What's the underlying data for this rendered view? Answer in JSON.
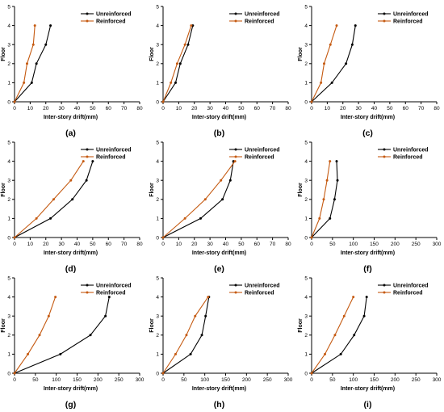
{
  "figure": {
    "panel_count": 9
  },
  "chart_data": [
    {
      "type": "line",
      "label": "(a)",
      "xlabel": "Inter-story drift(mm)",
      "ylabel": "Floor",
      "xlim": [
        0,
        80
      ],
      "ylim": [
        0,
        5
      ],
      "xticks": [
        0,
        10,
        20,
        30,
        40,
        50,
        60,
        70,
        80
      ],
      "yticks": [
        0,
        1,
        2,
        3,
        4,
        5
      ],
      "legend_position": "top-right",
      "series": [
        {
          "name": "Unreinforced",
          "color": "#000000",
          "x": [
            0,
            11,
            14,
            20,
            23
          ],
          "y": [
            0,
            1,
            2,
            3,
            4
          ]
        },
        {
          "name": "Reinforced",
          "color": "#c55a11",
          "x": [
            0,
            6,
            8,
            12,
            13
          ],
          "y": [
            0,
            1,
            2,
            3,
            4
          ]
        }
      ]
    },
    {
      "type": "line",
      "label": "(b)",
      "xlabel": "Inter-story drift(mm)",
      "ylabel": "Floor",
      "xlim": [
        0,
        80
      ],
      "ylim": [
        0,
        5
      ],
      "xticks": [
        0,
        10,
        20,
        30,
        40,
        50,
        60,
        70,
        80
      ],
      "yticks": [
        0,
        1,
        2,
        3,
        4,
        5
      ],
      "legend_position": "top-right",
      "series": [
        {
          "name": "Unreinforced",
          "color": "#000000",
          "x": [
            0,
            8,
            11,
            16,
            19
          ],
          "y": [
            0,
            1,
            2,
            3,
            4
          ]
        },
        {
          "name": "Reinforced",
          "color": "#c55a11",
          "x": [
            0,
            5,
            9,
            14,
            18
          ],
          "y": [
            0,
            1,
            2,
            3,
            4
          ]
        }
      ]
    },
    {
      "type": "line",
      "label": "(c)",
      "xlabel": "Inter-story drift(mm)",
      "ylabel": "Floor",
      "xlim": [
        0,
        80
      ],
      "ylim": [
        0,
        5
      ],
      "xticks": [
        0,
        10,
        20,
        30,
        40,
        50,
        60,
        70,
        80
      ],
      "yticks": [
        0,
        1,
        2,
        3,
        4,
        5
      ],
      "legend_position": "top-right",
      "series": [
        {
          "name": "Unreinforced",
          "color": "#000000",
          "x": [
            0,
            13,
            22,
            26,
            28
          ],
          "y": [
            0,
            1,
            2,
            3,
            4
          ]
        },
        {
          "name": "Reinforced",
          "color": "#c55a11",
          "x": [
            0,
            6,
            8,
            12,
            16
          ],
          "y": [
            0,
            1,
            2,
            3,
            4
          ]
        }
      ]
    },
    {
      "type": "line",
      "label": "(d)",
      "xlabel": "Inter-story drift(mm)",
      "ylabel": "Floor",
      "xlim": [
        0,
        80
      ],
      "ylim": [
        0,
        5
      ],
      "xticks": [
        0,
        10,
        20,
        30,
        40,
        50,
        60,
        70,
        80
      ],
      "yticks": [
        0,
        1,
        2,
        3,
        4,
        5
      ],
      "legend_position": "top-right",
      "series": [
        {
          "name": "Unreinforced",
          "color": "#000000",
          "x": [
            0,
            23,
            37,
            46,
            50
          ],
          "y": [
            0,
            1,
            2,
            3,
            4
          ]
        },
        {
          "name": "Reinforced",
          "color": "#c55a11",
          "x": [
            0,
            14,
            25,
            36,
            44
          ],
          "y": [
            0,
            1,
            2,
            3,
            4
          ]
        }
      ]
    },
    {
      "type": "line",
      "label": "(e)",
      "xlabel": "Inter-story drift(mm)",
      "ylabel": "Floor",
      "xlim": [
        0,
        80
      ],
      "ylim": [
        0,
        5
      ],
      "xticks": [
        0,
        10,
        20,
        30,
        40,
        50,
        60,
        70,
        80
      ],
      "yticks": [
        0,
        1,
        2,
        3,
        4,
        5
      ],
      "legend_position": "top-right",
      "series": [
        {
          "name": "Unreinforced",
          "color": "#000000",
          "x": [
            0,
            24,
            38,
            43,
            45
          ],
          "y": [
            0,
            1,
            2,
            3,
            4
          ]
        },
        {
          "name": "Reinforced",
          "color": "#c55a11",
          "x": [
            0,
            14,
            27,
            37,
            46
          ],
          "y": [
            0,
            1,
            2,
            3,
            4
          ]
        }
      ]
    },
    {
      "type": "line",
      "label": "(f)",
      "xlabel": "Inter-story drift(mm)",
      "ylabel": "Floor",
      "xlim": [
        0,
        300
      ],
      "ylim": [
        0,
        5
      ],
      "xticks": [
        0,
        50,
        100,
        150,
        200,
        250,
        300
      ],
      "yticks": [
        0,
        1,
        2,
        3,
        4,
        5
      ],
      "legend_position": "top-right",
      "series": [
        {
          "name": "Unreinforced",
          "color": "#000000",
          "x": [
            0,
            44,
            55,
            62,
            60
          ],
          "y": [
            0,
            1,
            2,
            3,
            4
          ]
        },
        {
          "name": "Reinforced",
          "color": "#c55a11",
          "x": [
            0,
            19,
            29,
            37,
            44
          ],
          "y": [
            0,
            1,
            2,
            3,
            4
          ]
        }
      ]
    },
    {
      "type": "line",
      "label": "(g)",
      "xlabel": "Inter-story drift(mm)",
      "ylabel": "Floor",
      "xlim": [
        0,
        300
      ],
      "ylim": [
        0,
        5
      ],
      "xticks": [
        0,
        50,
        100,
        150,
        200,
        250,
        300
      ],
      "yticks": [
        0,
        1,
        2,
        3,
        4,
        5
      ],
      "legend_position": "top-right",
      "series": [
        {
          "name": "Unreinforced",
          "color": "#000000",
          "x": [
            0,
            110,
            182,
            218,
            227
          ],
          "y": [
            0,
            1,
            2,
            3,
            4
          ]
        },
        {
          "name": "Reinforced",
          "color": "#c55a11",
          "x": [
            0,
            32,
            60,
            82,
            98
          ],
          "y": [
            0,
            1,
            2,
            3,
            4
          ]
        }
      ]
    },
    {
      "type": "line",
      "label": "(h)",
      "xlabel": "Inter-story drift(mm)",
      "ylabel": "Floor",
      "xlim": [
        0,
        300
      ],
      "ylim": [
        0,
        5
      ],
      "xticks": [
        0,
        50,
        100,
        150,
        200,
        250,
        300
      ],
      "yticks": [
        0,
        1,
        2,
        3,
        4,
        5
      ],
      "legend_position": "top-right",
      "series": [
        {
          "name": "Unreinforced",
          "color": "#000000",
          "x": [
            0,
            66,
            93,
            102,
            110
          ],
          "y": [
            0,
            1,
            2,
            3,
            4
          ]
        },
        {
          "name": "Reinforced",
          "color": "#c55a11",
          "x": [
            0,
            30,
            56,
            77,
            108
          ],
          "y": [
            0,
            1,
            2,
            3,
            4
          ]
        }
      ]
    },
    {
      "type": "line",
      "label": "(i)",
      "xlabel": "Inter-story drift(mm)",
      "ylabel": "Floor",
      "xlim": [
        0,
        300
      ],
      "ylim": [
        0,
        5
      ],
      "xticks": [
        0,
        50,
        100,
        150,
        200,
        250,
        300
      ],
      "yticks": [
        0,
        1,
        2,
        3,
        4,
        5
      ],
      "legend_position": "top-right",
      "series": [
        {
          "name": "Unreinforced",
          "color": "#000000",
          "x": [
            0,
            70,
            102,
            126,
            132
          ],
          "y": [
            0,
            1,
            2,
            3,
            4
          ]
        },
        {
          "name": "Reinforced",
          "color": "#c55a11",
          "x": [
            0,
            32,
            56,
            78,
            100
          ],
          "y": [
            0,
            1,
            2,
            3,
            4
          ]
        }
      ]
    }
  ]
}
